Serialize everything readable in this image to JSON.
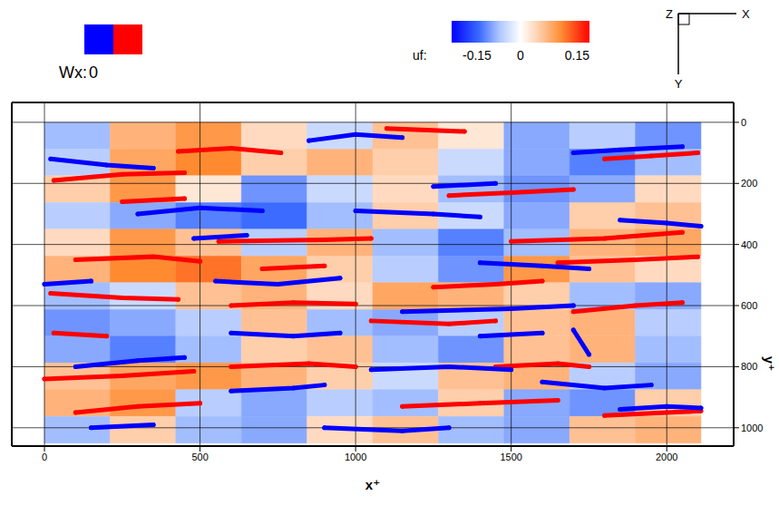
{
  "chart_data": {
    "type": "contour",
    "x_label": "x⁺",
    "y_label": "y⁺",
    "xlim": [
      -105,
      2215
    ],
    "ylim": [
      -65,
      1060
    ],
    "xticks": [
      0,
      500,
      1000,
      1500,
      2000
    ],
    "yticks": [
      0,
      200,
      400,
      600,
      800,
      1000
    ],
    "grid": true,
    "axes_triad": [
      "Z",
      "X",
      "Y"
    ],
    "vortex_legend": {
      "label": "Wx:",
      "value": 0,
      "colors": [
        "#0000ff",
        "#ff0000"
      ]
    },
    "field": {
      "name": "uf:",
      "color_range": [
        -0.15,
        0.15
      ],
      "color_ticks": [
        -0.15,
        0,
        0.15
      ],
      "x_edges": [
        0,
        211,
        422,
        633,
        844,
        1055,
        1266,
        1477,
        1688,
        1899,
        2110
      ],
      "y_edges": [
        0,
        88,
        175,
        263,
        350,
        438,
        525,
        613,
        700,
        788,
        875,
        963,
        1050
      ],
      "cells": [
        [
          -0.05,
          0.06,
          0.08,
          0.03,
          -0.03,
          0.05,
          0.02,
          -0.06,
          -0.04,
          -0.07
        ],
        [
          -0.04,
          0.07,
          0.09,
          0.04,
          0.06,
          0.04,
          -0.03,
          -0.06,
          -0.08,
          -0.05
        ],
        [
          0.04,
          0.08,
          0.02,
          -0.07,
          -0.03,
          0.03,
          -0.05,
          -0.07,
          -0.06,
          0.03
        ],
        [
          -0.04,
          -0.06,
          -0.08,
          -0.09,
          -0.05,
          0.04,
          -0.03,
          -0.06,
          0.04,
          0.05
        ],
        [
          0.03,
          0.08,
          0.05,
          -0.04,
          0.06,
          -0.05,
          -0.08,
          -0.05,
          0.06,
          0.07
        ],
        [
          0.06,
          0.09,
          0.1,
          0.07,
          0.04,
          -0.04,
          -0.07,
          0.08,
          0.05,
          0.03
        ],
        [
          -0.05,
          -0.03,
          0.05,
          0.06,
          0.03,
          0.07,
          0.06,
          0.04,
          -0.05,
          -0.06
        ],
        [
          -0.07,
          -0.06,
          -0.04,
          0.05,
          -0.05,
          -0.06,
          -0.04,
          0.05,
          0.06,
          -0.04
        ],
        [
          -0.06,
          -0.08,
          -0.05,
          0.04,
          0.05,
          -0.05,
          -0.07,
          0.05,
          0.06,
          -0.05
        ],
        [
          0.05,
          0.07,
          0.08,
          0.06,
          0.04,
          -0.03,
          0.05,
          0.06,
          -0.04,
          -0.06
        ],
        [
          0.06,
          0.08,
          -0.04,
          -0.06,
          -0.04,
          -0.05,
          0.04,
          -0.06,
          -0.07,
          0.04
        ],
        [
          -0.05,
          0.04,
          -0.05,
          -0.06,
          0.03,
          0.05,
          -0.05,
          -0.06,
          0.05,
          0.06
        ]
      ]
    },
    "vortices": [
      {
        "color": "#ff0000",
        "streaks": [
          [
            [
              30,
              190
            ],
            [
              250,
              170
            ],
            [
              450,
              165
            ]
          ],
          [
            [
              430,
              95
            ],
            [
              600,
              85
            ],
            [
              760,
              100
            ]
          ],
          [
            [
              560,
              390
            ],
            [
              900,
              385
            ],
            [
              1050,
              380
            ]
          ],
          [
            [
              100,
              450
            ],
            [
              350,
              440
            ],
            [
              500,
              455
            ]
          ],
          [
            [
              20,
              560
            ],
            [
              250,
              575
            ],
            [
              430,
              580
            ]
          ],
          [
            [
              600,
              600
            ],
            [
              800,
              590
            ],
            [
              1000,
              595
            ]
          ],
          [
            [
              1250,
              540
            ],
            [
              1450,
              530
            ],
            [
              1600,
              520
            ]
          ],
          [
            [
              1500,
              390
            ],
            [
              1800,
              380
            ],
            [
              2050,
              360
            ]
          ],
          [
            [
              1650,
              460
            ],
            [
              1900,
              450
            ],
            [
              2100,
              440
            ]
          ],
          [
            [
              0,
              840
            ],
            [
              250,
              830
            ],
            [
              480,
              815
            ]
          ],
          [
            [
              600,
              800
            ],
            [
              850,
              790
            ],
            [
              1000,
              800
            ]
          ],
          [
            [
              100,
              950
            ],
            [
              300,
              930
            ],
            [
              500,
              920
            ]
          ],
          [
            [
              1150,
              930
            ],
            [
              1400,
              920
            ],
            [
              1650,
              910
            ]
          ],
          [
            [
              1800,
              960
            ],
            [
              2000,
              950
            ],
            [
              2110,
              945
            ]
          ],
          [
            [
              1300,
              240
            ],
            [
              1500,
              230
            ],
            [
              1700,
              220
            ]
          ],
          [
            [
              1800,
              120
            ],
            [
              1950,
              110
            ],
            [
              2100,
              100
            ]
          ],
          [
            [
              1050,
              650
            ],
            [
              1300,
              660
            ],
            [
              1450,
              650
            ]
          ],
          [
            [
              1700,
              620
            ],
            [
              1900,
              600
            ],
            [
              2050,
              590
            ]
          ],
          [
            [
              250,
              260
            ],
            [
              450,
              250
            ]
          ],
          [
            [
              1100,
              20
            ],
            [
              1350,
              30
            ]
          ],
          [
            [
              700,
              480
            ],
            [
              900,
              470
            ]
          ],
          [
            [
              1450,
              800
            ],
            [
              1650,
              790
            ],
            [
              1750,
              800
            ]
          ],
          [
            [
              30,
              690
            ],
            [
              200,
              700
            ]
          ]
        ]
      },
      {
        "color": "#0000ff",
        "streaks": [
          [
            [
              20,
              120
            ],
            [
              200,
              140
            ],
            [
              350,
              150
            ]
          ],
          [
            [
              850,
              60
            ],
            [
              1000,
              40
            ],
            [
              1150,
              50
            ]
          ],
          [
            [
              300,
              300
            ],
            [
              500,
              280
            ],
            [
              700,
              290
            ]
          ],
          [
            [
              0,
              530
            ],
            [
              150,
              520
            ]
          ],
          [
            [
              550,
              520
            ],
            [
              750,
              530
            ],
            [
              950,
              510
            ]
          ],
          [
            [
              1000,
              290
            ],
            [
              1250,
              300
            ],
            [
              1400,
              310
            ]
          ],
          [
            [
              1150,
              620
            ],
            [
              1500,
              610
            ],
            [
              1700,
              600
            ]
          ],
          [
            [
              1400,
              460
            ],
            [
              1600,
              470
            ],
            [
              1750,
              480
            ]
          ],
          [
            [
              1700,
              100
            ],
            [
              1850,
              90
            ],
            [
              2050,
              80
            ]
          ],
          [
            [
              1850,
              320
            ],
            [
              2000,
              330
            ],
            [
              2110,
              340
            ]
          ],
          [
            [
              100,
              800
            ],
            [
              300,
              780
            ],
            [
              450,
              770
            ]
          ],
          [
            [
              600,
              880
            ],
            [
              800,
              870
            ],
            [
              900,
              860
            ]
          ],
          [
            [
              1050,
              810
            ],
            [
              1300,
              800
            ],
            [
              1500,
              810
            ]
          ],
          [
            [
              1600,
              850
            ],
            [
              1800,
              870
            ],
            [
              1950,
              860
            ]
          ],
          [
            [
              1850,
              940
            ],
            [
              2000,
              930
            ],
            [
              2110,
              935
            ]
          ],
          [
            [
              150,
              1000
            ],
            [
              350,
              990
            ]
          ],
          [
            [
              900,
              1000
            ],
            [
              1150,
              1010
            ],
            [
              1300,
              1000
            ]
          ],
          [
            [
              1400,
              700
            ],
            [
              1600,
              690
            ]
          ],
          [
            [
              600,
              690
            ],
            [
              800,
              700
            ],
            [
              950,
              690
            ]
          ],
          [
            [
              1700,
              680
            ],
            [
              1750,
              760
            ]
          ],
          [
            [
              480,
              380
            ],
            [
              650,
              370
            ]
          ],
          [
            [
              1250,
              210
            ],
            [
              1450,
              200
            ]
          ]
        ]
      }
    ]
  }
}
